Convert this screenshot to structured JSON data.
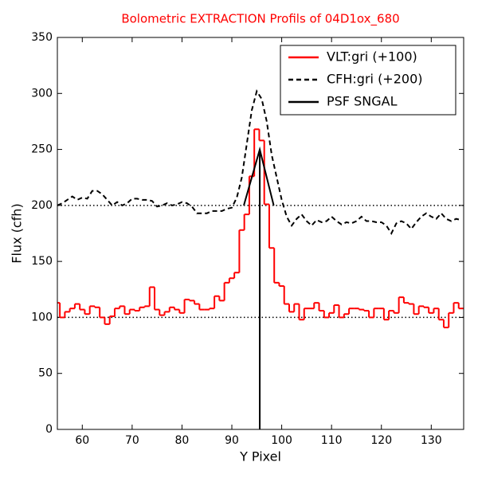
{
  "chart_data": {
    "type": "line",
    "title": "Bolometric EXTRACTION Profils of 04D1ox_680",
    "title_color": "#ff0000",
    "xlabel": "Y Pixel",
    "ylabel": "Flux (cfh)",
    "xlim": [
      55,
      136.5
    ],
    "ylim": [
      0,
      350
    ],
    "xticks": [
      60,
      70,
      80,
      90,
      100,
      110,
      120,
      130
    ],
    "yticks": [
      0,
      50,
      100,
      150,
      200,
      250,
      300,
      350
    ],
    "hlines": [
      100,
      200
    ],
    "legend": "upper right",
    "x": [
      55,
      56,
      57,
      58,
      59,
      60,
      61,
      62,
      63,
      64,
      65,
      66,
      67,
      68,
      69,
      70,
      71,
      72,
      73,
      74,
      75,
      76,
      77,
      78,
      79,
      80,
      81,
      82,
      83,
      84,
      85,
      86,
      87,
      88,
      89,
      90,
      91,
      92,
      93,
      94,
      95,
      96,
      97,
      98,
      99,
      100,
      101,
      102,
      103,
      104,
      105,
      106,
      107,
      108,
      109,
      110,
      111,
      112,
      113,
      114,
      115,
      116,
      117,
      118,
      119,
      120,
      121,
      122,
      123,
      124,
      125,
      126,
      127,
      128,
      129,
      130,
      131,
      132,
      133,
      134,
      135,
      136
    ],
    "series": [
      {
        "name": "VLT:gri (+100)",
        "color": "#ff0000",
        "drawstyle": "steps-mid",
        "linestyle": "solid",
        "values": [
          113,
          100,
          105,
          108,
          112,
          107,
          103,
          110,
          109,
          100,
          94,
          101,
          108,
          110,
          103,
          107,
          106,
          109,
          110,
          127,
          107,
          102,
          105,
          109,
          107,
          104,
          116,
          115,
          112,
          107,
          107,
          108,
          119,
          115,
          131,
          135,
          140,
          178,
          192,
          226,
          268,
          258,
          201,
          162,
          131,
          128,
          112,
          105,
          112,
          98,
          108,
          108,
          113,
          106,
          100,
          104,
          111,
          100,
          103,
          108,
          108,
          107,
          106,
          100,
          108,
          108,
          98,
          106,
          104,
          118,
          113,
          112,
          103,
          110,
          109,
          104,
          108,
          98,
          91,
          104,
          113,
          108
        ]
      },
      {
        "name": "CFH:gri (+200)",
        "color": "#000000",
        "drawstyle": "default",
        "linestyle": "dashed",
        "values": [
          200,
          202,
          205,
          208,
          205,
          207,
          206,
          213,
          213,
          210,
          205,
          200,
          203,
          200,
          202,
          206,
          206,
          205,
          205,
          204,
          199,
          200,
          202,
          200,
          201,
          203,
          202,
          199,
          193,
          193,
          193,
          195,
          195,
          195,
          197,
          198,
          207,
          225,
          255,
          285,
          302,
          295,
          275,
          245,
          225,
          205,
          190,
          182,
          188,
          192,
          186,
          182,
          187,
          185,
          186,
          190,
          186,
          183,
          185,
          184,
          186,
          190,
          186,
          186,
          185,
          185,
          182,
          175,
          184,
          186,
          184,
          179,
          185,
          190,
          193,
          190,
          188,
          193,
          188,
          186,
          188,
          187
        ]
      },
      {
        "name": "PSF SNGAL",
        "color": "#000000",
        "drawstyle": "default",
        "linestyle": "solid",
        "x": [
          92.4,
          95.6,
          98.4
        ],
        "values": [
          200,
          250,
          200
        ]
      },
      {
        "color": "#000000",
        "drawstyle": "default",
        "linestyle": "solid",
        "x": [
          95.6,
          95.6
        ],
        "values": [
          0,
          250
        ]
      }
    ]
  }
}
